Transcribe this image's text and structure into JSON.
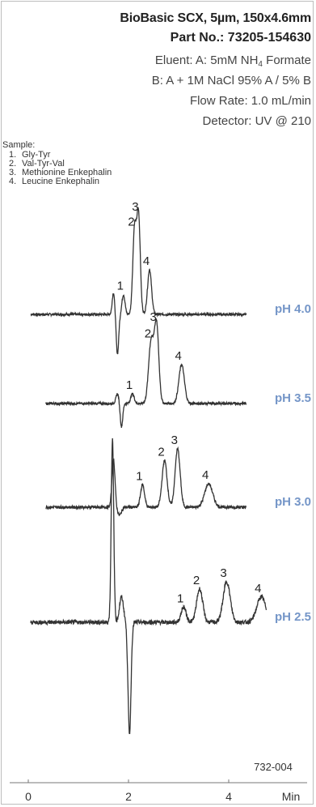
{
  "header": {
    "title": "BioBasic SCX, 5µm, 150x4.6mm",
    "part_no": "Part No.: 73205-154630",
    "eluent_a_prefix": "Eluent: A: 5mM NH",
    "eluent_a_sub": "4",
    "eluent_a_suffix": " Formate",
    "eluent_b": "B: A + 1M NaCl 95% A / 5% B",
    "flow_rate": "Flow Rate: 1.0 mL/min",
    "detector": "Detector: UV @ 210"
  },
  "sample": {
    "heading": "Sample:",
    "items": [
      {
        "num": "1.",
        "name": "Gly-Tyr"
      },
      {
        "num": "2.",
        "name": "Val-Tyr-Val"
      },
      {
        "num": "3.",
        "name": "Methionine Enkephalin"
      },
      {
        "num": "4.",
        "name": "Leucine Enkephalin"
      }
    ]
  },
  "figure_code": "732-004",
  "chart_data": {
    "type": "line",
    "xlabel": "Min",
    "xlim": [
      0,
      5
    ],
    "xticks": [
      "0",
      "2",
      "4"
    ],
    "xtick_values": [
      0,
      2,
      4
    ],
    "ph_color": "#7596c8",
    "traces": [
      {
        "name": "pH 4.0",
        "baseline_noise": 0.4,
        "disturbance": [
          {
            "t": 1.7,
            "a": 2.2,
            "w": 0.025
          },
          {
            "t": 1.78,
            "a": -4.0,
            "w": 0.025
          }
        ],
        "peaks": [
          {
            "label": "1",
            "t": 1.9,
            "height": 2.0,
            "width": 0.03
          },
          {
            "label": "2",
            "t": 2.12,
            "height": 8.5,
            "width": 0.035
          },
          {
            "label": "3",
            "t": 2.2,
            "height": 10.0,
            "width": 0.035
          },
          {
            "label": "4",
            "t": 2.42,
            "height": 4.5,
            "width": 0.04
          }
        ]
      },
      {
        "name": "pH 3.5",
        "baseline_noise": 0.4,
        "disturbance": [
          {
            "t": 1.78,
            "a": 1.0,
            "w": 0.03
          },
          {
            "t": 1.86,
            "a": -2.4,
            "w": 0.025
          }
        ],
        "peaks": [
          {
            "label": "1",
            "t": 2.08,
            "height": 1.0,
            "width": 0.035
          },
          {
            "label": "2",
            "t": 2.45,
            "height": 6.3,
            "width": 0.05
          },
          {
            "label": "3",
            "t": 2.56,
            "height": 8.0,
            "width": 0.045
          },
          {
            "label": "4",
            "t": 3.06,
            "height": 4.0,
            "width": 0.055
          }
        ]
      },
      {
        "name": "pH 3.0",
        "baseline_noise": 0.5,
        "disturbance": [
          {
            "t": 1.7,
            "a": 5.0,
            "w": 0.03
          },
          {
            "t": 1.82,
            "a": -0.8,
            "w": 0.04
          }
        ],
        "peaks": [
          {
            "label": "1",
            "t": 2.28,
            "height": 2.3,
            "width": 0.04
          },
          {
            "label": "2",
            "t": 2.72,
            "height": 4.8,
            "width": 0.05
          },
          {
            "label": "3",
            "t": 2.98,
            "height": 6.0,
            "width": 0.05
          },
          {
            "label": "4",
            "t": 3.6,
            "height": 2.4,
            "width": 0.08
          }
        ]
      },
      {
        "name": "pH 2.5",
        "baseline_noise": 0.7,
        "disturbance": [
          {
            "t": 1.68,
            "a": 18.0,
            "w": 0.025
          },
          {
            "t": 1.86,
            "a": 2.5,
            "w": 0.04
          },
          {
            "t": 2.02,
            "a": -11.0,
            "w": 0.03
          }
        ],
        "peaks": [
          {
            "label": "1",
            "t": 3.1,
            "height": 1.5,
            "width": 0.05
          },
          {
            "label": "2",
            "t": 3.42,
            "height": 3.3,
            "width": 0.06
          },
          {
            "label": "3",
            "t": 3.96,
            "height": 4.0,
            "width": 0.07
          },
          {
            "label": "4",
            "t": 4.65,
            "height": 2.5,
            "width": 0.09
          }
        ]
      }
    ]
  }
}
